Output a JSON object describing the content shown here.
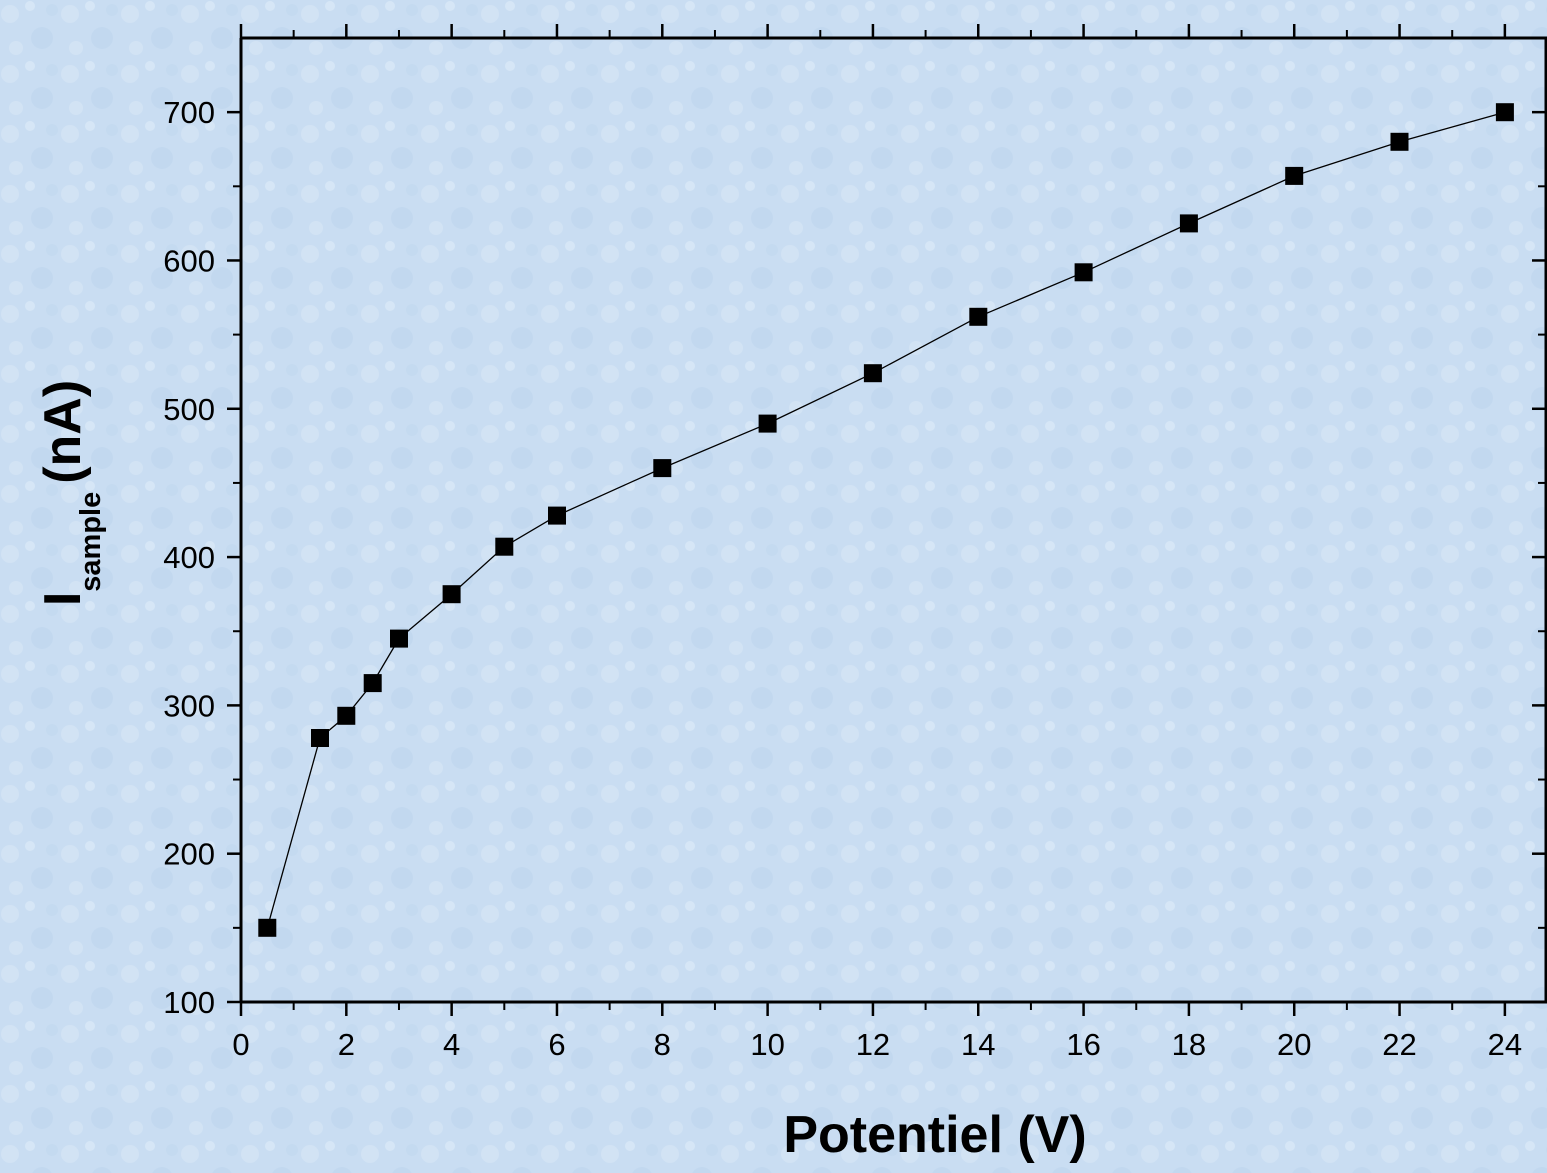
{
  "chart_data": {
    "type": "line",
    "title": "",
    "xlabel": "Potentiel (V)",
    "ylabel": {
      "main": "I",
      "subscript": "sample",
      "unit": "(nA)"
    },
    "xlim": [
      0,
      24.8
    ],
    "ylim": [
      100,
      750
    ],
    "x_ticks": [
      0,
      2,
      4,
      6,
      8,
      10,
      12,
      14,
      16,
      18,
      20,
      22,
      24
    ],
    "y_ticks": [
      100,
      200,
      300,
      400,
      500,
      600,
      700
    ],
    "grid": false,
    "legend": "none",
    "marker": "square",
    "colors": {
      "background": "#c9ddf2",
      "series": "#000000"
    },
    "series": [
      {
        "x": [
          0.5,
          1.5,
          2,
          2.5,
          3,
          4,
          5,
          6,
          8,
          10,
          12,
          14,
          16,
          18,
          20,
          22,
          24
        ],
        "y": [
          150,
          278,
          293,
          315,
          345,
          375,
          407,
          428,
          460,
          490,
          524,
          562,
          592,
          625,
          657,
          680,
          700
        ]
      }
    ]
  }
}
